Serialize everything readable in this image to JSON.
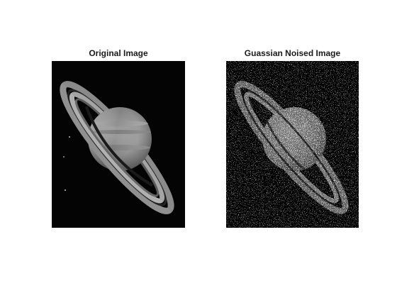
{
  "figure": {
    "background_color": "#ffffff",
    "panels": [
      {
        "title": "Original Image",
        "image": "saturn-grayscale-image"
      },
      {
        "title": "Guassian Noised Image",
        "image": "saturn-gaussian-noise-image"
      }
    ]
  }
}
